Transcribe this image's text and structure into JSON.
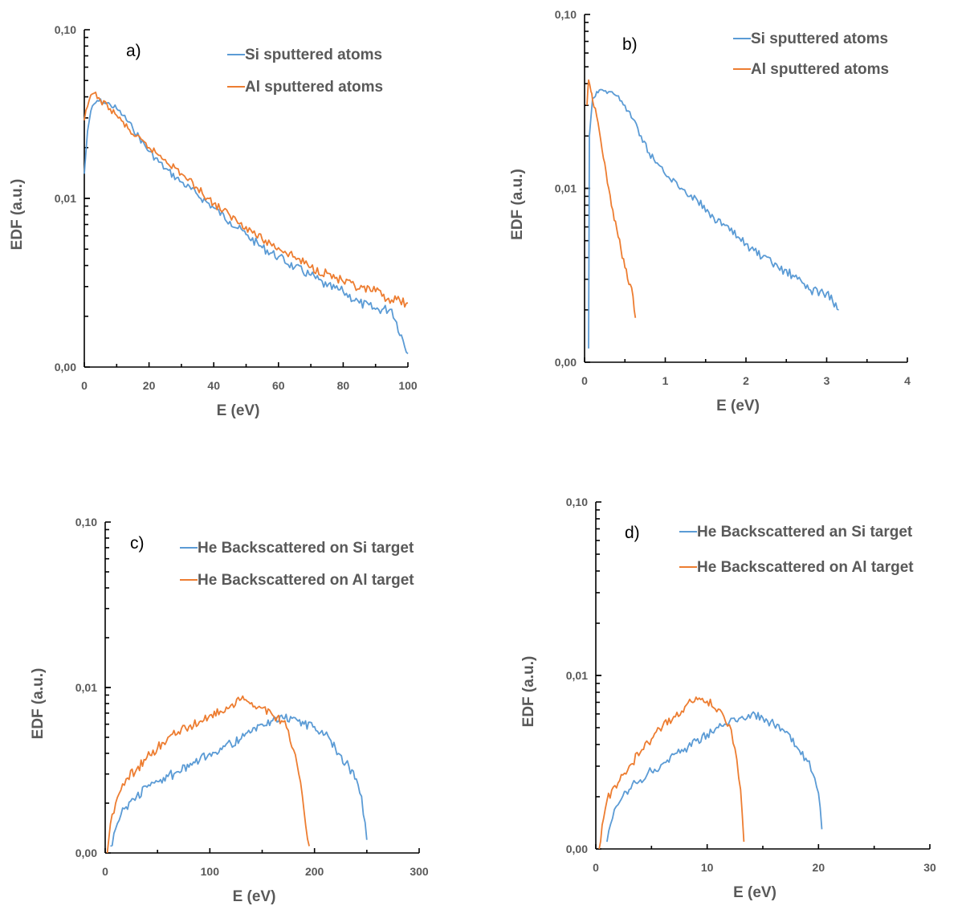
{
  "colors": {
    "si": "#5B9BD5",
    "al": "#ED7D31",
    "text": "#595959"
  },
  "chart_data": [
    {
      "panel": "a)",
      "type": "line",
      "yscale": "log",
      "xlabel": "E (eV)",
      "ylabel": "EDF (a.u.)",
      "xlim": [
        0,
        100
      ],
      "xticks": [
        "0",
        "20",
        "40",
        "60",
        "80",
        "100"
      ],
      "yticks": [
        "0,00",
        "0,01",
        "0,10"
      ],
      "legend_position": "top-right",
      "series": [
        {
          "name": "Si sputtered atoms",
          "color": "#5B9BD5",
          "points": [
            [
              0,
              0.014
            ],
            [
              1,
              0.025
            ],
            [
              2,
              0.033
            ],
            [
              4,
              0.038
            ],
            [
              6,
              0.037
            ],
            [
              8,
              0.036
            ],
            [
              10,
              0.034
            ],
            [
              12,
              0.031
            ],
            [
              15,
              0.026
            ],
            [
              20,
              0.019
            ],
            [
              25,
              0.015
            ],
            [
              30,
              0.0125
            ],
            [
              35,
              0.0105
            ],
            [
              40,
              0.0088
            ],
            [
              45,
              0.0073
            ],
            [
              50,
              0.0061
            ],
            [
              55,
              0.0051
            ],
            [
              60,
              0.0045
            ],
            [
              65,
              0.0039
            ],
            [
              70,
              0.0035
            ],
            [
              75,
              0.003
            ],
            [
              80,
              0.0028
            ],
            [
              85,
              0.0024
            ],
            [
              90,
              0.0022
            ],
            [
              95,
              0.0022
            ],
            [
              100,
              0.0012
            ]
          ]
        },
        {
          "name": "Al sputtered atoms",
          "color": "#ED7D31",
          "points": [
            [
              0,
              0.029
            ],
            [
              1,
              0.035
            ],
            [
              2,
              0.041
            ],
            [
              3,
              0.042
            ],
            [
              5,
              0.038
            ],
            [
              8,
              0.034
            ],
            [
              10,
              0.031
            ],
            [
              15,
              0.024
            ],
            [
              20,
              0.02
            ],
            [
              25,
              0.017
            ],
            [
              30,
              0.014
            ],
            [
              35,
              0.0115
            ],
            [
              40,
              0.0093
            ],
            [
              45,
              0.0079
            ],
            [
              50,
              0.0068
            ],
            [
              55,
              0.0057
            ],
            [
              60,
              0.0051
            ],
            [
              65,
              0.0045
            ],
            [
              70,
              0.0039
            ],
            [
              75,
              0.0036
            ],
            [
              80,
              0.0032
            ],
            [
              85,
              0.0029
            ],
            [
              90,
              0.0028
            ],
            [
              95,
              0.0025
            ],
            [
              100,
              0.0024
            ]
          ]
        }
      ]
    },
    {
      "panel": "b)",
      "type": "line",
      "yscale": "log",
      "xlabel": "E (eV)",
      "ylabel": "EDF (a.u.)",
      "xlim": [
        0,
        4
      ],
      "xticks": [
        "0",
        "1",
        "2",
        "3",
        "4"
      ],
      "yticks": [
        "0,00",
        "0,01",
        "0,10"
      ],
      "legend_position": "top-right",
      "series": [
        {
          "name": "Si sputtered atoms",
          "color": "#5B9BD5",
          "points": [
            [
              0.05,
              0.0012
            ],
            [
              0.06,
              0.02
            ],
            [
              0.1,
              0.033
            ],
            [
              0.15,
              0.036
            ],
            [
              0.2,
              0.037
            ],
            [
              0.3,
              0.036
            ],
            [
              0.4,
              0.034
            ],
            [
              0.5,
              0.03
            ],
            [
              0.6,
              0.025
            ],
            [
              0.7,
              0.02
            ],
            [
              0.8,
              0.016
            ],
            [
              0.9,
              0.014
            ],
            [
              1.0,
              0.012
            ],
            [
              1.2,
              0.01
            ],
            [
              1.4,
              0.0085
            ],
            [
              1.6,
              0.0068
            ],
            [
              1.8,
              0.0057
            ],
            [
              2.0,
              0.0048
            ],
            [
              2.2,
              0.004
            ],
            [
              2.4,
              0.0035
            ],
            [
              2.6,
              0.0031
            ],
            [
              2.8,
              0.0026
            ],
            [
              3.0,
              0.0025
            ],
            [
              3.15,
              0.002
            ]
          ]
        },
        {
          "name": "Al sputtered atoms",
          "color": "#ED7D31",
          "points": [
            [
              0.03,
              0.03
            ],
            [
              0.05,
              0.042
            ],
            [
              0.08,
              0.036
            ],
            [
              0.1,
              0.032
            ],
            [
              0.15,
              0.026
            ],
            [
              0.2,
              0.019
            ],
            [
              0.25,
              0.014
            ],
            [
              0.3,
              0.01
            ],
            [
              0.35,
              0.0075
            ],
            [
              0.4,
              0.0058
            ],
            [
              0.45,
              0.0045
            ],
            [
              0.5,
              0.0035
            ],
            [
              0.55,
              0.0028
            ],
            [
              0.6,
              0.0024
            ],
            [
              0.63,
              0.0018
            ]
          ]
        }
      ]
    },
    {
      "panel": "c)",
      "type": "line",
      "yscale": "log",
      "xlabel": "E (eV)",
      "ylabel": "EDF (a.u.)",
      "xlim": [
        0,
        300
      ],
      "xticks": [
        "0",
        "100",
        "200",
        "300"
      ],
      "yticks": [
        "0,00",
        "0,01",
        "0,10"
      ],
      "legend_position": "top-right",
      "series": [
        {
          "name": "He Backscattered on Si target",
          "color": "#5B9BD5",
          "points": [
            [
              5,
              0.0011
            ],
            [
              10,
              0.0014
            ],
            [
              15,
              0.0017
            ],
            [
              20,
              0.0019
            ],
            [
              30,
              0.0022
            ],
            [
              40,
              0.0025
            ],
            [
              50,
              0.0027
            ],
            [
              60,
              0.0029
            ],
            [
              70,
              0.0031
            ],
            [
              80,
              0.0033
            ],
            [
              90,
              0.0036
            ],
            [
              100,
              0.004
            ],
            [
              110,
              0.0043
            ],
            [
              120,
              0.0046
            ],
            [
              130,
              0.0049
            ],
            [
              140,
              0.0054
            ],
            [
              150,
              0.006
            ],
            [
              160,
              0.0063
            ],
            [
              170,
              0.0065
            ],
            [
              180,
              0.0066
            ],
            [
              190,
              0.006
            ],
            [
              200,
              0.0058
            ],
            [
              210,
              0.0052
            ],
            [
              220,
              0.0043
            ],
            [
              230,
              0.0035
            ],
            [
              240,
              0.0028
            ],
            [
              245,
              0.0022
            ],
            [
              250,
              0.0012
            ]
          ]
        },
        {
          "name": "He Backscattered on Al target",
          "color": "#ED7D31",
          "points": [
            [
              2,
              0.001
            ],
            [
              5,
              0.0015
            ],
            [
              10,
              0.002
            ],
            [
              15,
              0.0024
            ],
            [
              20,
              0.0028
            ],
            [
              30,
              0.0032
            ],
            [
              40,
              0.0038
            ],
            [
              50,
              0.0043
            ],
            [
              60,
              0.005
            ],
            [
              70,
              0.0054
            ],
            [
              80,
              0.0058
            ],
            [
              90,
              0.0062
            ],
            [
              100,
              0.0068
            ],
            [
              110,
              0.0072
            ],
            [
              120,
              0.0078
            ],
            [
              130,
              0.0085
            ],
            [
              140,
              0.0081
            ],
            [
              150,
              0.0075
            ],
            [
              160,
              0.0068
            ],
            [
              170,
              0.0062
            ],
            [
              175,
              0.0055
            ],
            [
              180,
              0.0042
            ],
            [
              185,
              0.003
            ],
            [
              190,
              0.0018
            ],
            [
              195,
              0.0011
            ]
          ]
        }
      ]
    },
    {
      "panel": "d)",
      "type": "line",
      "yscale": "log",
      "xlabel": "E (eV)",
      "ylabel": "EDF (a.u.)",
      "xlim": [
        0,
        30
      ],
      "xticks": [
        "0",
        "10",
        "20",
        "30"
      ],
      "yticks": [
        "0,00",
        "0,01",
        "0,10"
      ],
      "legend_position": "top-right",
      "series": [
        {
          "name": "He Backscattered an Si target",
          "color": "#5B9BD5",
          "points": [
            [
              1,
              0.0011
            ],
            [
              1.5,
              0.0015
            ],
            [
              2,
              0.0018
            ],
            [
              3,
              0.0022
            ],
            [
              4,
              0.0025
            ],
            [
              5,
              0.0028
            ],
            [
              6,
              0.0031
            ],
            [
              7,
              0.0035
            ],
            [
              8,
              0.0038
            ],
            [
              9,
              0.0042
            ],
            [
              10,
              0.0046
            ],
            [
              11,
              0.005
            ],
            [
              12,
              0.0054
            ],
            [
              13,
              0.0057
            ],
            [
              14,
              0.006
            ],
            [
              15,
              0.0057
            ],
            [
              16,
              0.0052
            ],
            [
              17,
              0.0047
            ],
            [
              18,
              0.0039
            ],
            [
              19,
              0.0032
            ],
            [
              19.5,
              0.0027
            ],
            [
              20,
              0.0021
            ],
            [
              20.3,
              0.0013
            ]
          ]
        },
        {
          "name": "He Backscattered on Al target",
          "color": "#ED7D31",
          "points": [
            [
              0.3,
              0.001
            ],
            [
              0.7,
              0.0015
            ],
            [
              1,
              0.0019
            ],
            [
              2,
              0.0024
            ],
            [
              3,
              0.003
            ],
            [
              4,
              0.0036
            ],
            [
              5,
              0.0043
            ],
            [
              6,
              0.0051
            ],
            [
              7,
              0.0058
            ],
            [
              8,
              0.0066
            ],
            [
              9,
              0.0075
            ],
            [
              10,
              0.0071
            ],
            [
              11,
              0.0064
            ],
            [
              11.5,
              0.0058
            ],
            [
              12,
              0.0052
            ],
            [
              12.5,
              0.0038
            ],
            [
              13,
              0.0022
            ],
            [
              13.3,
              0.0011
            ]
          ]
        }
      ]
    }
  ]
}
